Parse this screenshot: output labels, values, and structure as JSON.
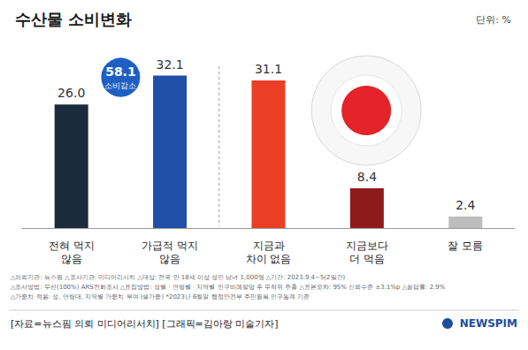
{
  "chart_data": {
    "type": "bar",
    "title": "수산물 소비변화",
    "subtitle": "단위: %",
    "categories": [
      "전혀 먹지\n않음",
      "가급적 먹지\n않음",
      "지금과\n차이 없음",
      "지금보다\n더 먹음",
      "잘 모름"
    ],
    "values": [
      26.0,
      32.1,
      31.1,
      8.4,
      2.4
    ],
    "value_labels": [
      "26.0",
      "32.1",
      "31.1",
      "8.4",
      "2.4"
    ],
    "colors": [
      "#1c2b3c",
      "#1f4fa6",
      "#ea3f26",
      "#8e1b1b",
      "#bdbdbd"
    ],
    "ylim": [
      0,
      35
    ],
    "grid": false,
    "tick_labels": "x",
    "data_labels": true,
    "annotation": {
      "value": 58.1,
      "label": "소비감소"
    },
    "notes": [
      "△의뢰기관: 뉴스핌 △조사기관: 미디어리서치 △대상: 전국 만 18세 이상 성인 남녀 1,000명 △기간: 2023.9.4~5(2일간)",
      "△조사방법: 무선(100%) ARS전화조사 △표집방법: 성별 · 연령별 · 지역별 인구비례할당 후 무작위 추출 △표본오차: 95% 신뢰수준 ±3.1%p △응답률: 2.9%",
      "△가중치 적용: 성, 연령대, 지역별 가중치 부여 (셀가중) *2023년 6월말 행정안전부 주민등록 인구통계 기준"
    ],
    "source": "[자료=뉴스핌 의뢰 미디어리서치]",
    "credit": "[그래픽=김아랑 미술기자]",
    "logo": "NEWSPIM"
  }
}
